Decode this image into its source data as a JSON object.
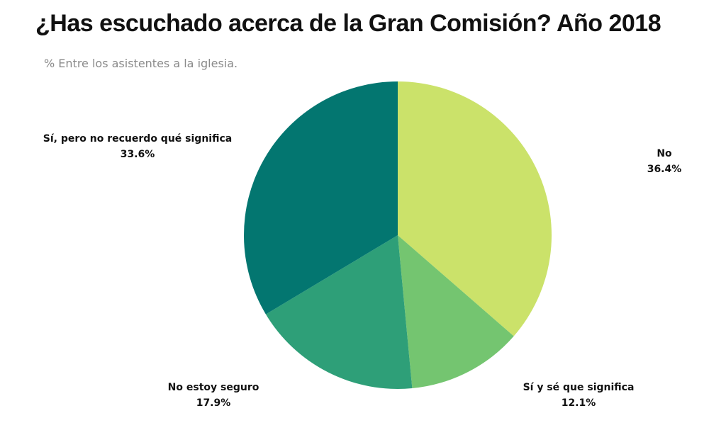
{
  "title": "¿Has escuchado acerca de la Gran Comisión? Año 2018",
  "subtitle": "% Entre los asistentes a la iglesia.",
  "chart_data": {
    "type": "pie",
    "title": "¿Has escuchado acerca de la Gran Comisión? Año 2018",
    "subtitle": "% Entre los asistentes a la iglesia.",
    "slices": [
      {
        "label": "No",
        "value": 36.4,
        "display": "36.4%",
        "color": "#cbe26a"
      },
      {
        "label": "Sí y sé que significa",
        "value": 12.1,
        "display": "12.1%",
        "color": "#74c570"
      },
      {
        "label": "No estoy seguro",
        "value": 17.9,
        "display": "17.9%",
        "color": "#2e9f78"
      },
      {
        "label": "Sí, pero no recuerdo qué significa",
        "value": 33.6,
        "display": "33.6%",
        "color": "#037670"
      }
    ],
    "legend": "none"
  }
}
